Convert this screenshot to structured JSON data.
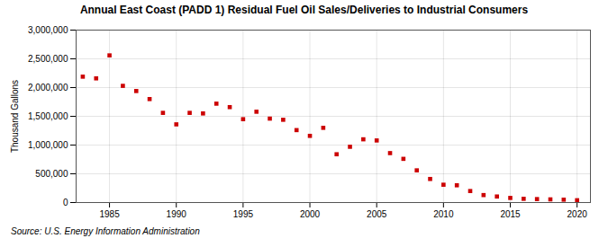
{
  "chart_data": {
    "type": "scatter",
    "title": "Annual East Coast (PADD 1) Residual Fuel Oil Sales/Deliveries to Industrial Consumers",
    "ylabel": "Thousand Gallons",
    "source": "Source: U.S. Energy Information Administration",
    "x": [
      1983,
      1984,
      1985,
      1986,
      1987,
      1988,
      1989,
      1990,
      1991,
      1992,
      1993,
      1994,
      1995,
      1996,
      1997,
      1998,
      1999,
      2000,
      2001,
      2002,
      2003,
      2004,
      2005,
      2006,
      2007,
      2008,
      2009,
      2010,
      2011,
      2012,
      2013,
      2014,
      2015,
      2016,
      2017,
      2018,
      2019,
      2020
    ],
    "values": [
      2190000,
      2160000,
      2560000,
      2030000,
      1940000,
      1800000,
      1560000,
      1360000,
      1560000,
      1550000,
      1720000,
      1660000,
      1450000,
      1580000,
      1460000,
      1440000,
      1260000,
      1160000,
      1300000,
      840000,
      970000,
      1100000,
      1080000,
      860000,
      760000,
      560000,
      410000,
      310000,
      300000,
      200000,
      130000,
      105000,
      80000,
      65000,
      60000,
      55000,
      50000,
      40000
    ],
    "color": "#cc0000",
    "marker": "square",
    "xlim": [
      1982.5,
      2021
    ],
    "xticks": [
      1985,
      1990,
      1995,
      2000,
      2005,
      2010,
      2015,
      2020
    ],
    "ylim": [
      0,
      3000000
    ],
    "yticks": [
      0,
      {
        "value": 500000,
        "label": "500,000"
      },
      {
        "value": 1000000,
        "label": "1,000,000"
      },
      {
        "value": 1500000,
        "label": "1,500,000"
      },
      {
        "value": 2000000,
        "label": "2,000,000"
      },
      {
        "value": 2500000,
        "label": "2,500,000"
      },
      {
        "value": 3000000,
        "label": "3,000,000"
      }
    ],
    "grid": true
  }
}
